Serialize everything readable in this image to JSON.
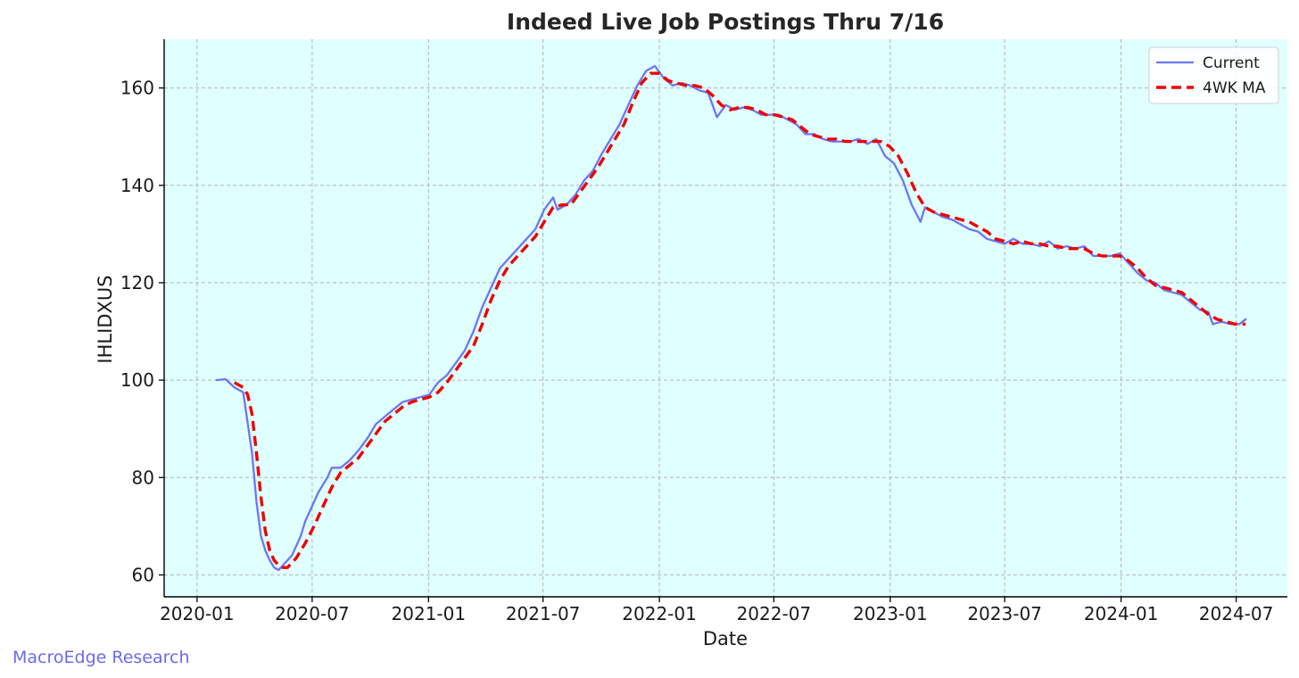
{
  "chart_data": {
    "type": "line",
    "title": "Indeed Live Job Postings Thru 7/16",
    "xlabel": "Date",
    "ylabel": "IHLIDXUS",
    "x_ticks": [
      "2020-01",
      "2020-07",
      "2021-01",
      "2021-07",
      "2022-01",
      "2022-07",
      "2023-01",
      "2023-07",
      "2024-01",
      "2024-07"
    ],
    "y_ticks": [
      60,
      80,
      100,
      120,
      140,
      160
    ],
    "xlim": [
      "2019-11-10",
      "2024-09-20"
    ],
    "ylim": [
      55.5,
      170
    ],
    "grid": true,
    "legend_position": "top-right",
    "background_color": "#e0ffff",
    "series": [
      {
        "name": "Current",
        "color": "#6b77f2",
        "style": "solid",
        "points": [
          [
            "2020-02-01",
            100.0
          ],
          [
            "2020-02-15",
            100.2
          ],
          [
            "2020-02-29",
            98.5
          ],
          [
            "2020-03-14",
            97.5
          ],
          [
            "2020-03-28",
            85
          ],
          [
            "2020-04-04",
            75
          ],
          [
            "2020-04-11",
            68
          ],
          [
            "2020-04-18",
            65
          ],
          [
            "2020-04-25",
            63
          ],
          [
            "2020-05-02",
            61.5
          ],
          [
            "2020-05-09",
            61
          ],
          [
            "2020-05-16",
            62
          ],
          [
            "2020-05-23",
            63
          ],
          [
            "2020-05-30",
            64
          ],
          [
            "2020-06-06",
            66
          ],
          [
            "2020-06-13",
            68
          ],
          [
            "2020-06-20",
            71
          ],
          [
            "2020-06-27",
            73
          ],
          [
            "2020-07-11",
            77
          ],
          [
            "2020-07-25",
            80
          ],
          [
            "2020-08-01",
            82
          ],
          [
            "2020-08-15",
            82
          ],
          [
            "2020-08-29",
            83.5
          ],
          [
            "2020-09-12",
            85.5
          ],
          [
            "2020-09-26",
            88
          ],
          [
            "2020-10-10",
            91
          ],
          [
            "2020-10-24",
            92.5
          ],
          [
            "2020-11-07",
            94
          ],
          [
            "2020-11-21",
            95.5
          ],
          [
            "2020-12-05",
            96
          ],
          [
            "2020-12-19",
            96.5
          ],
          [
            "2021-01-02",
            97
          ],
          [
            "2021-01-16",
            99.5
          ],
          [
            "2021-01-30",
            101
          ],
          [
            "2021-02-13",
            103.5
          ],
          [
            "2021-02-27",
            106
          ],
          [
            "2021-03-13",
            110
          ],
          [
            "2021-03-27",
            115
          ],
          [
            "2021-04-10",
            119
          ],
          [
            "2021-04-24",
            123
          ],
          [
            "2021-05-08",
            125
          ],
          [
            "2021-05-22",
            127
          ],
          [
            "2021-06-05",
            129
          ],
          [
            "2021-06-19",
            131
          ],
          [
            "2021-07-03",
            135
          ],
          [
            "2021-07-17",
            137.5
          ],
          [
            "2021-07-24",
            135
          ],
          [
            "2021-08-07",
            136
          ],
          [
            "2021-08-21",
            138
          ],
          [
            "2021-09-04",
            141
          ],
          [
            "2021-09-18",
            143
          ],
          [
            "2021-10-02",
            146.5
          ],
          [
            "2021-10-16",
            149.5
          ],
          [
            "2021-10-30",
            152.5
          ],
          [
            "2021-11-13",
            156.5
          ],
          [
            "2021-11-27",
            160.5
          ],
          [
            "2021-12-11",
            163.5
          ],
          [
            "2021-12-25",
            164.5
          ],
          [
            "2022-01-08",
            162
          ],
          [
            "2022-01-22",
            160.5
          ],
          [
            "2022-02-05",
            161
          ],
          [
            "2022-02-19",
            160.5
          ],
          [
            "2022-03-05",
            159.5
          ],
          [
            "2022-03-19",
            159
          ],
          [
            "2022-04-02",
            154
          ],
          [
            "2022-04-16",
            156.5
          ],
          [
            "2022-04-30",
            155.5
          ],
          [
            "2022-05-14",
            156
          ],
          [
            "2022-05-28",
            155.5
          ],
          [
            "2022-06-11",
            154.5
          ],
          [
            "2022-06-25",
            154.5
          ],
          [
            "2022-07-09",
            154.5
          ],
          [
            "2022-07-23",
            153.5
          ],
          [
            "2022-08-06",
            152.5
          ],
          [
            "2022-08-20",
            150.5
          ],
          [
            "2022-09-03",
            150.5
          ],
          [
            "2022-09-17",
            149.5
          ],
          [
            "2022-10-01",
            149
          ],
          [
            "2022-10-15",
            149
          ],
          [
            "2022-10-29",
            149
          ],
          [
            "2022-11-12",
            149.5
          ],
          [
            "2022-11-26",
            148.5
          ],
          [
            "2022-12-10",
            149.5
          ],
          [
            "2022-12-24",
            146
          ],
          [
            "2023-01-07",
            144.5
          ],
          [
            "2023-01-21",
            141
          ],
          [
            "2023-02-04",
            136
          ],
          [
            "2023-02-18",
            132.5
          ],
          [
            "2023-02-25",
            135.5
          ],
          [
            "2023-03-11",
            134.5
          ],
          [
            "2023-03-25",
            133.5
          ],
          [
            "2023-04-08",
            133
          ],
          [
            "2023-04-22",
            132
          ],
          [
            "2023-05-06",
            131
          ],
          [
            "2023-05-20",
            130.5
          ],
          [
            "2023-06-03",
            129
          ],
          [
            "2023-06-17",
            128.5
          ],
          [
            "2023-07-01",
            128
          ],
          [
            "2023-07-15",
            129
          ],
          [
            "2023-07-29",
            128
          ],
          [
            "2023-08-12",
            128
          ],
          [
            "2023-08-26",
            127.5
          ],
          [
            "2023-09-09",
            128.5
          ],
          [
            "2023-09-23",
            127
          ],
          [
            "2023-10-07",
            127.5
          ],
          [
            "2023-10-21",
            127
          ],
          [
            "2023-11-04",
            127.5
          ],
          [
            "2023-11-18",
            125.5
          ],
          [
            "2023-12-02",
            125.5
          ],
          [
            "2023-12-16",
            125.5
          ],
          [
            "2023-12-30",
            126
          ],
          [
            "2024-01-13",
            124
          ],
          [
            "2024-01-27",
            122
          ],
          [
            "2024-02-10",
            120.5
          ],
          [
            "2024-02-24",
            120
          ],
          [
            "2024-03-09",
            118.5
          ],
          [
            "2024-03-23",
            118
          ],
          [
            "2024-04-06",
            117.5
          ],
          [
            "2024-04-20",
            116
          ],
          [
            "2024-05-04",
            114.5
          ],
          [
            "2024-05-18",
            114
          ],
          [
            "2024-05-25",
            111.5
          ],
          [
            "2024-06-08",
            112
          ],
          [
            "2024-06-22",
            111.5
          ],
          [
            "2024-07-06",
            111.5
          ],
          [
            "2024-07-16",
            112.5
          ]
        ]
      },
      {
        "name": "4WK MA",
        "color": "#ee0000",
        "style": "dashed",
        "points": [
          [
            "2020-02-29",
            99.5
          ],
          [
            "2020-03-14",
            98.5
          ],
          [
            "2020-03-21",
            97
          ],
          [
            "2020-03-28",
            93
          ],
          [
            "2020-04-04",
            85
          ],
          [
            "2020-04-11",
            76
          ],
          [
            "2020-04-18",
            69
          ],
          [
            "2020-04-25",
            65
          ],
          [
            "2020-05-02",
            63
          ],
          [
            "2020-05-09",
            62
          ],
          [
            "2020-05-16",
            61.5
          ],
          [
            "2020-05-23",
            61.5
          ],
          [
            "2020-05-30",
            62.5
          ],
          [
            "2020-06-06",
            63.5
          ],
          [
            "2020-06-20",
            66.5
          ],
          [
            "2020-07-04",
            70
          ],
          [
            "2020-07-18",
            74
          ],
          [
            "2020-08-01",
            78
          ],
          [
            "2020-08-15",
            81
          ],
          [
            "2020-08-29",
            82.5
          ],
          [
            "2020-09-12",
            84
          ],
          [
            "2020-09-26",
            86.5
          ],
          [
            "2020-10-10",
            89
          ],
          [
            "2020-10-24",
            91.5
          ],
          [
            "2020-11-07",
            93
          ],
          [
            "2020-11-21",
            94.5
          ],
          [
            "2020-12-05",
            95.5
          ],
          [
            "2020-12-19",
            96
          ],
          [
            "2021-01-02",
            96.5
          ],
          [
            "2021-01-16",
            97.5
          ],
          [
            "2021-01-30",
            99.5
          ],
          [
            "2021-02-13",
            102
          ],
          [
            "2021-02-27",
            104.5
          ],
          [
            "2021-03-13",
            107
          ],
          [
            "2021-03-27",
            111.5
          ],
          [
            "2021-04-10",
            116.5
          ],
          [
            "2021-04-24",
            120.5
          ],
          [
            "2021-05-08",
            123.5
          ],
          [
            "2021-05-22",
            125.5
          ],
          [
            "2021-06-05",
            127.5
          ],
          [
            "2021-06-19",
            129.5
          ],
          [
            "2021-07-03",
            132.5
          ],
          [
            "2021-07-17",
            135.5
          ],
          [
            "2021-07-31",
            136
          ],
          [
            "2021-08-14",
            136
          ],
          [
            "2021-08-28",
            138.5
          ],
          [
            "2021-09-11",
            141
          ],
          [
            "2021-09-25",
            143.5
          ],
          [
            "2021-10-09",
            146.5
          ],
          [
            "2021-10-23",
            149.5
          ],
          [
            "2021-11-06",
            152.5
          ],
          [
            "2021-11-20",
            157
          ],
          [
            "2021-12-04",
            161
          ],
          [
            "2021-12-18",
            163
          ],
          [
            "2022-01-01",
            163
          ],
          [
            "2022-01-15",
            161.5
          ],
          [
            "2022-01-29",
            161
          ],
          [
            "2022-02-12",
            160.5
          ],
          [
            "2022-02-26",
            160.5
          ],
          [
            "2022-03-12",
            160
          ],
          [
            "2022-03-26",
            158.5
          ],
          [
            "2022-04-09",
            156.5
          ],
          [
            "2022-04-23",
            155.5
          ],
          [
            "2022-05-07",
            156
          ],
          [
            "2022-05-21",
            156
          ],
          [
            "2022-06-04",
            155.5
          ],
          [
            "2022-06-18",
            154.5
          ],
          [
            "2022-07-02",
            154.5
          ],
          [
            "2022-07-16",
            154
          ],
          [
            "2022-07-30",
            153.5
          ],
          [
            "2022-08-13",
            152
          ],
          [
            "2022-08-27",
            150.5
          ],
          [
            "2022-09-10",
            150
          ],
          [
            "2022-09-24",
            149.5
          ],
          [
            "2022-10-08",
            149.5
          ],
          [
            "2022-10-22",
            149
          ],
          [
            "2022-11-05",
            149
          ],
          [
            "2022-11-19",
            149
          ],
          [
            "2022-12-03",
            149
          ],
          [
            "2022-12-17",
            149
          ],
          [
            "2022-12-31",
            148
          ],
          [
            "2023-01-14",
            146
          ],
          [
            "2023-01-28",
            142.5
          ],
          [
            "2023-02-11",
            138.5
          ],
          [
            "2023-02-25",
            135.5
          ],
          [
            "2023-03-11",
            134.5
          ],
          [
            "2023-03-25",
            134
          ],
          [
            "2023-04-08",
            133.5
          ],
          [
            "2023-04-22",
            133
          ],
          [
            "2023-05-06",
            132.5
          ],
          [
            "2023-05-20",
            131.5
          ],
          [
            "2023-06-03",
            130.5
          ],
          [
            "2023-06-17",
            129
          ],
          [
            "2023-07-01",
            128.5
          ],
          [
            "2023-07-15",
            128
          ],
          [
            "2023-07-29",
            128.5
          ],
          [
            "2023-08-12",
            128
          ],
          [
            "2023-08-26",
            128
          ],
          [
            "2023-09-09",
            127.5
          ],
          [
            "2023-09-23",
            127.5
          ],
          [
            "2023-10-07",
            127
          ],
          [
            "2023-10-21",
            127
          ],
          [
            "2023-11-04",
            127
          ],
          [
            "2023-11-18",
            126
          ],
          [
            "2023-12-02",
            125.5
          ],
          [
            "2023-12-16",
            125.5
          ],
          [
            "2023-12-30",
            125.5
          ],
          [
            "2024-01-13",
            124.5
          ],
          [
            "2024-01-27",
            123
          ],
          [
            "2024-02-10",
            121
          ],
          [
            "2024-02-24",
            119.5
          ],
          [
            "2024-03-09",
            119
          ],
          [
            "2024-03-23",
            118.5
          ],
          [
            "2024-04-06",
            118
          ],
          [
            "2024-04-20",
            116.5
          ],
          [
            "2024-05-04",
            115
          ],
          [
            "2024-05-18",
            113.5
          ],
          [
            "2024-06-01",
            112.5
          ],
          [
            "2024-06-15",
            112
          ],
          [
            "2024-06-29",
            111.5
          ],
          [
            "2024-07-16",
            111.5
          ]
        ]
      }
    ]
  },
  "watermark": "MacroEdge Research"
}
